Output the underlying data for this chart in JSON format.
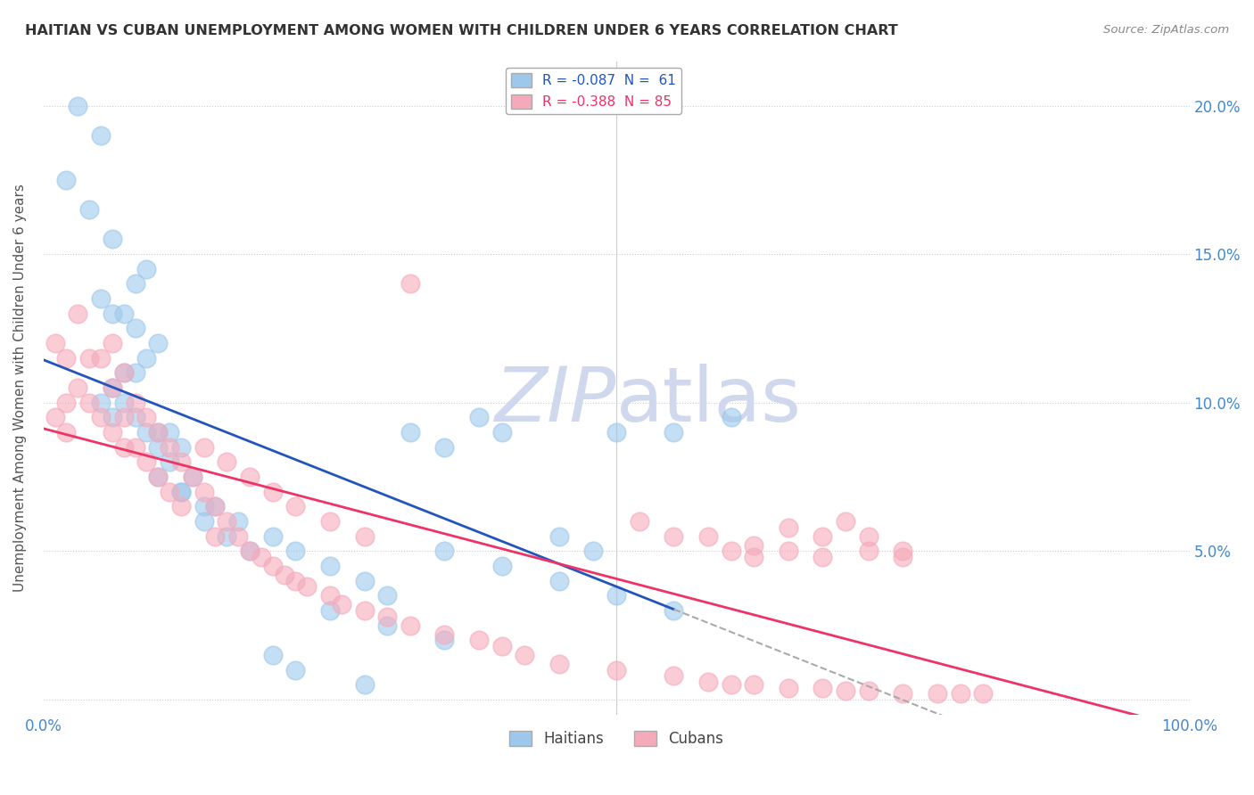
{
  "title": "HAITIAN VS CUBAN UNEMPLOYMENT AMONG WOMEN WITH CHILDREN UNDER 6 YEARS CORRELATION CHART",
  "source": "Source: ZipAtlas.com",
  "ylabel": "Unemployment Among Women with Children Under 6 years",
  "legend_haitian": "R = -0.087  N =  61",
  "legend_cuban": "R = -0.388  N = 85",
  "ytick_values": [
    0.0,
    0.05,
    0.1,
    0.15,
    0.2
  ],
  "ytick_labels": [
    "",
    "5.0%",
    "10.0%",
    "15.0%",
    "20.0%"
  ],
  "xlim": [
    0.0,
    1.0
  ],
  "ylim": [
    -0.005,
    0.215
  ],
  "haitian_color": "#9DC8EC",
  "cuban_color": "#F5AABB",
  "haitian_line_color": "#2255BB",
  "cuban_line_color": "#EE3366",
  "dash_color": "#AAAAAA",
  "watermark_color": "#D0D8EE",
  "haitian_x": [
    0.03,
    0.05,
    0.02,
    0.04,
    0.06,
    0.09,
    0.08,
    0.05,
    0.06,
    0.07,
    0.08,
    0.1,
    0.09,
    0.07,
    0.08,
    0.06,
    0.05,
    0.07,
    0.06,
    0.08,
    0.09,
    0.1,
    0.11,
    0.12,
    0.1,
    0.11,
    0.13,
    0.12,
    0.15,
    0.14,
    0.16,
    0.18,
    0.1,
    0.12,
    0.14,
    0.17,
    0.2,
    0.22,
    0.25,
    0.28,
    0.3,
    0.32,
    0.35,
    0.38,
    0.4,
    0.45,
    0.48,
    0.5,
    0.55,
    0.6,
    0.25,
    0.3,
    0.35,
    0.2,
    0.22,
    0.28,
    0.35,
    0.4,
    0.45,
    0.5,
    0.55
  ],
  "haitian_y": [
    0.2,
    0.19,
    0.175,
    0.165,
    0.155,
    0.145,
    0.14,
    0.135,
    0.13,
    0.13,
    0.125,
    0.12,
    0.115,
    0.11,
    0.11,
    0.105,
    0.1,
    0.1,
    0.095,
    0.095,
    0.09,
    0.09,
    0.09,
    0.085,
    0.085,
    0.08,
    0.075,
    0.07,
    0.065,
    0.06,
    0.055,
    0.05,
    0.075,
    0.07,
    0.065,
    0.06,
    0.055,
    0.05,
    0.045,
    0.04,
    0.035,
    0.09,
    0.085,
    0.095,
    0.09,
    0.055,
    0.05,
    0.09,
    0.09,
    0.095,
    0.03,
    0.025,
    0.02,
    0.015,
    0.01,
    0.005,
    0.05,
    0.045,
    0.04,
    0.035,
    0.03
  ],
  "cuban_x": [
    0.01,
    0.01,
    0.02,
    0.02,
    0.02,
    0.03,
    0.03,
    0.04,
    0.04,
    0.05,
    0.05,
    0.06,
    0.06,
    0.06,
    0.07,
    0.07,
    0.07,
    0.08,
    0.08,
    0.09,
    0.09,
    0.1,
    0.1,
    0.11,
    0.11,
    0.12,
    0.12,
    0.13,
    0.14,
    0.15,
    0.15,
    0.16,
    0.17,
    0.18,
    0.19,
    0.2,
    0.21,
    0.22,
    0.23,
    0.25,
    0.26,
    0.28,
    0.3,
    0.32,
    0.35,
    0.38,
    0.4,
    0.42,
    0.45,
    0.5,
    0.55,
    0.58,
    0.6,
    0.62,
    0.65,
    0.68,
    0.7,
    0.72,
    0.75,
    0.78,
    0.8,
    0.82,
    0.32,
    0.14,
    0.16,
    0.18,
    0.2,
    0.22,
    0.25,
    0.28,
    0.55,
    0.6,
    0.62,
    0.65,
    0.68,
    0.7,
    0.72,
    0.75,
    0.52,
    0.58,
    0.62,
    0.65,
    0.68,
    0.72,
    0.75
  ],
  "cuban_y": [
    0.12,
    0.095,
    0.115,
    0.1,
    0.09,
    0.13,
    0.105,
    0.115,
    0.1,
    0.115,
    0.095,
    0.12,
    0.105,
    0.09,
    0.11,
    0.095,
    0.085,
    0.1,
    0.085,
    0.095,
    0.08,
    0.09,
    0.075,
    0.085,
    0.07,
    0.08,
    0.065,
    0.075,
    0.07,
    0.065,
    0.055,
    0.06,
    0.055,
    0.05,
    0.048,
    0.045,
    0.042,
    0.04,
    0.038,
    0.035,
    0.032,
    0.03,
    0.028,
    0.025,
    0.022,
    0.02,
    0.018,
    0.015,
    0.012,
    0.01,
    0.008,
    0.006,
    0.005,
    0.005,
    0.004,
    0.004,
    0.003,
    0.003,
    0.002,
    0.002,
    0.002,
    0.002,
    0.14,
    0.085,
    0.08,
    0.075,
    0.07,
    0.065,
    0.06,
    0.055,
    0.055,
    0.05,
    0.048,
    0.05,
    0.048,
    0.06,
    0.055,
    0.05,
    0.06,
    0.055,
    0.052,
    0.058,
    0.055,
    0.05,
    0.048
  ]
}
